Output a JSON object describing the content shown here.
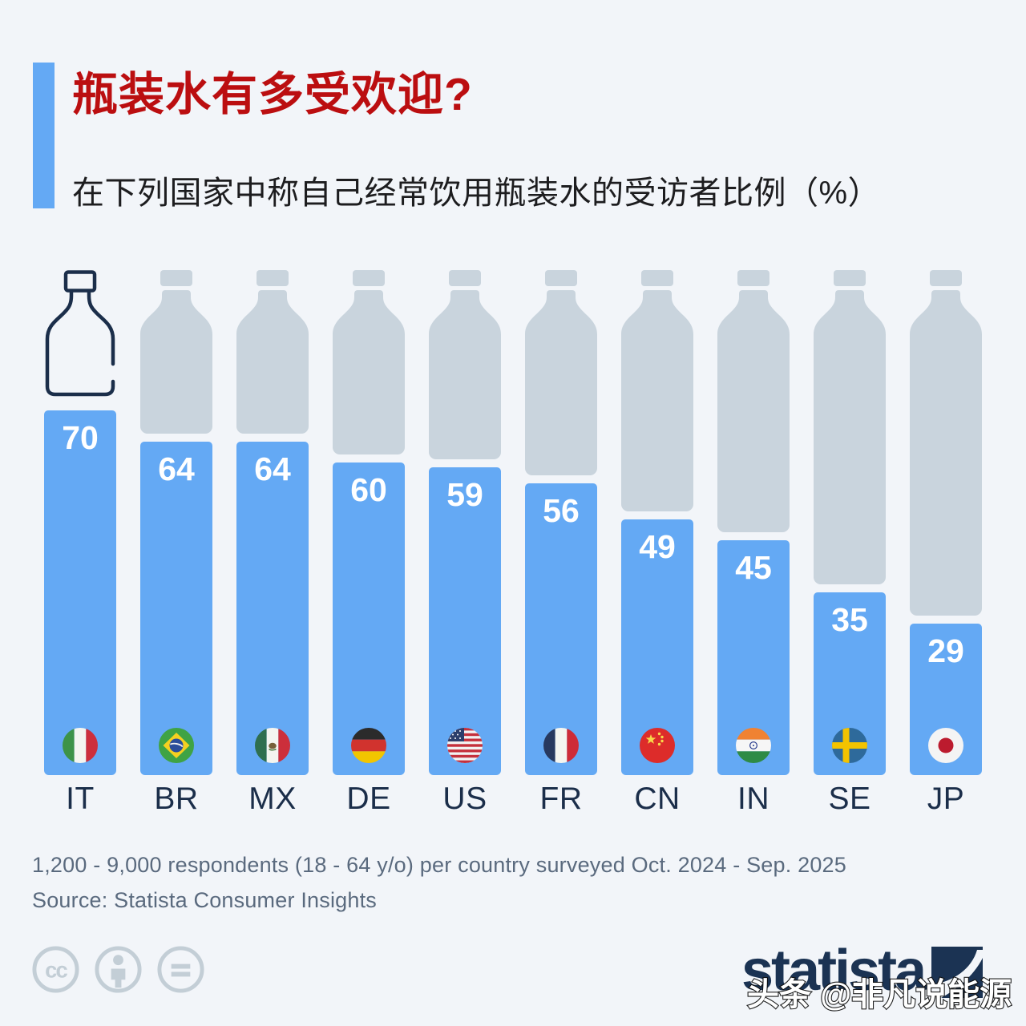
{
  "header": {
    "title": "瓶装水有多受欢迎?",
    "subtitle": "在下列国家中称自己经常饮用瓶装水的受访者比例（%）",
    "accent_color": "#64a9f4",
    "title_color": "#bb0e10"
  },
  "chart_data": {
    "type": "bar",
    "title": "瓶装水有多受欢迎?",
    "subtitle": "在下列国家中称自己经常饮用瓶装水的受访者比例（%）",
    "unit": "%",
    "categories": [
      "IT",
      "BR",
      "MX",
      "DE",
      "US",
      "FR",
      "CN",
      "IN",
      "SE",
      "JP"
    ],
    "values": [
      70,
      64,
      64,
      60,
      59,
      56,
      49,
      45,
      35,
      29
    ],
    "flags": [
      "italy",
      "brazil",
      "mexico",
      "germany",
      "united-states",
      "france",
      "china",
      "india",
      "sweden",
      "japan"
    ],
    "ylim": [
      0,
      100
    ],
    "bar_color": "#64a9f4",
    "bottle_color": "#c9d4dd",
    "value_label_color": "#ffffff",
    "category_label_color": "#1b2e4a",
    "first_column_style": "outlined-bottle-icon"
  },
  "footer": {
    "note": "1,200 - 9,000 respondents (18 - 64 y/o) per country surveyed Oct. 2024 - Sep. 2025",
    "source": "Source: Statista Consumer Insights",
    "license_icons": [
      "cc-icon",
      "cc-by-person-icon",
      "cc-nd-equals-icon"
    ],
    "brand": "statista",
    "brand_color": "#1b3353",
    "watermark": "头条 @非凡说能源"
  }
}
